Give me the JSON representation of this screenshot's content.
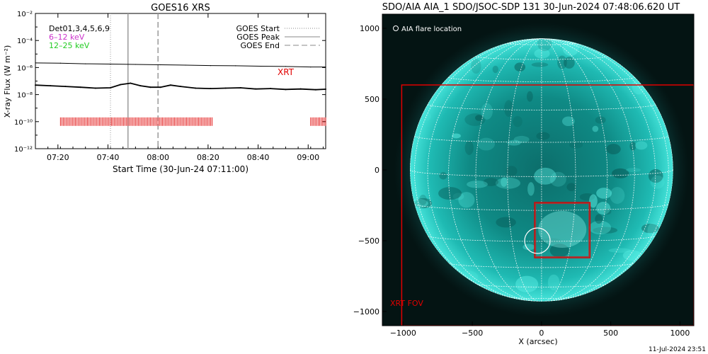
{
  "footer": {
    "timestamp": "11-Jul-2024 23:51"
  },
  "colors": {
    "goes_low": "#000000",
    "goes_high": "#000000",
    "xrt_marks": "#e00000",
    "xrt_fov": "#e00000",
    "sun": "#2fd6cf",
    "legend_6_12": "#cc33cc",
    "legend_12_25": "#22cc22"
  },
  "chart_data": [
    {
      "type": "line",
      "title": "GOES16 XRS",
      "xlabel": "Start Time (30-Jun-24 07:11:00)",
      "ylabel": "X-ray Flux (W m⁻²)",
      "xlim_minutes": [
        0,
        116
      ],
      "ylim": [
        1e-12,
        0.01
      ],
      "log_y": true,
      "x_ticks": [
        "07:20",
        "07:40",
        "08:00",
        "08:20",
        "08:40",
        "09:00"
      ],
      "x_tick_minutes": [
        9,
        29,
        49,
        69,
        89,
        109
      ],
      "y_ticks": [
        "10⁻¹²",
        "10⁻¹⁰",
        "10⁻⁸",
        "10⁻⁶",
        "10⁻⁴",
        "10⁻²"
      ],
      "y_tick_values": [
        1e-12,
        1e-10,
        1e-08,
        1e-06,
        0.0001,
        0.01
      ],
      "legend_left": [
        "Det01,3,4,5,6,9",
        "6–12 keV",
        "12–25 keV"
      ],
      "legend_right": [
        "GOES Start",
        "GOES Peak",
        "GOES End"
      ],
      "annotation": "XRT",
      "events": {
        "start": 30,
        "peak": 37,
        "end": 49
      },
      "series": [
        {
          "name": "",
          "x": [
            0,
            10,
            20,
            30,
            40,
            50,
            60,
            70,
            80,
            90,
            100,
            110,
            116
          ],
          "y": [
            2.2e-06,
            2.1e-06,
            1.9e-06,
            1.8e-06,
            1.7e-06,
            1.6e-06,
            1.5e-06,
            1.4e-06,
            1.35e-06,
            1.25e-06,
            1.2e-06,
            1.1e-06,
            1.1e-06
          ]
        },
        {
          "name": "",
          "x": [
            0,
            6,
            12,
            18,
            24,
            30,
            34,
            38,
            42,
            46,
            50,
            54,
            58,
            64,
            70,
            76,
            82,
            88,
            94,
            100,
            106,
            112,
            116
          ],
          "y": [
            5e-08,
            4.5e-08,
            4e-08,
            3.5e-08,
            3e-08,
            3.2e-08,
            5.5e-08,
            7e-08,
            4.5e-08,
            3.5e-08,
            3.5e-08,
            5e-08,
            4e-08,
            3e-08,
            2.8e-08,
            3e-08,
            3.2e-08,
            2.6e-08,
            2.8e-08,
            2.4e-08,
            2.6e-08,
            2.3e-08,
            2.5e-08
          ]
        }
      ],
      "xrt_observations": [
        {
          "from": 10,
          "to": 71
        },
        {
          "from": 110,
          "to": 116
        }
      ],
      "xrt_level": 1e-10
    },
    {
      "type": "scatter",
      "title": "SDO/AIA AIA_1 SDO/JSOC-SDP 131 30-Jun-2024 07:48:06.620 UT",
      "xlabel": "X (arcsec)",
      "ylabel": "",
      "xlim": [
        -1150,
        1100
      ],
      "ylim": [
        -1100,
        1100
      ],
      "x_ticks": [
        -1000,
        -500,
        0,
        500,
        1000
      ],
      "y_ticks": [
        -1000,
        -500,
        0,
        500,
        1000
      ],
      "solar_radius_arcsec": 950,
      "legend": "AIA flare location",
      "flare_location": {
        "x": -30,
        "y": -500
      },
      "xrt_fov_label": "XRT FOV",
      "xrt_fov": {
        "x0": -1010,
        "x1": 1100,
        "y0": -1100,
        "y1": 600
      },
      "xrt_inner_box": {
        "x0": -50,
        "x1": 350,
        "y0": -620,
        "y1": -230
      }
    }
  ]
}
